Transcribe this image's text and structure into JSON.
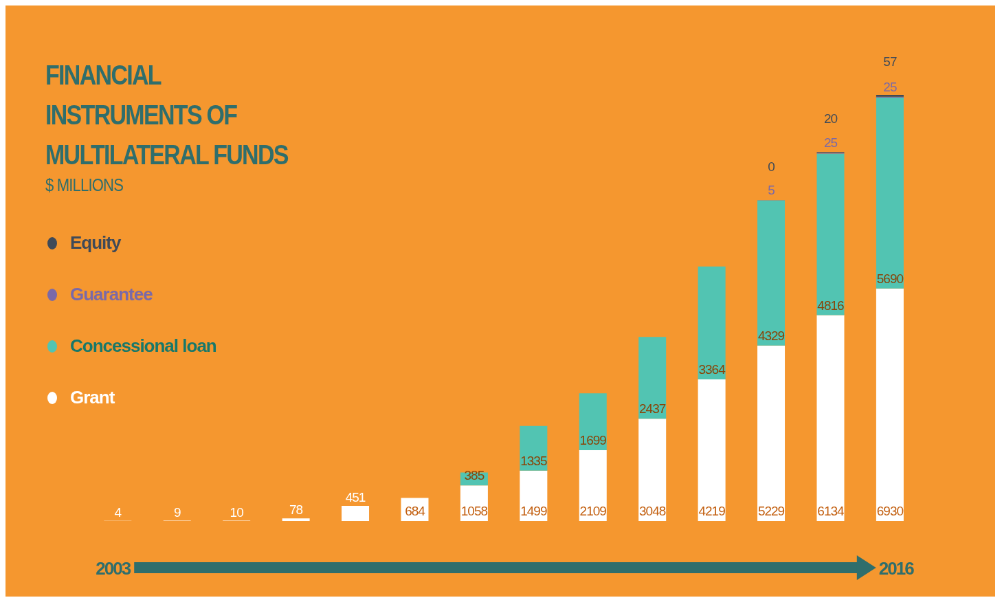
{
  "chart_data": {
    "type": "bar",
    "title": "FINANCIAL INSTRUMENTS OF MULTILATERAL FUNDS",
    "subtitle": "$ MILLIONS",
    "categories": [
      "2003",
      null,
      null,
      null,
      null,
      null,
      null,
      null,
      null,
      null,
      null,
      null,
      null,
      "2016"
    ],
    "stacked": true,
    "data_labels": true,
    "legend": "left",
    "grid": false,
    "series": [
      {
        "name": "Grant",
        "color": "#ffffff",
        "values": [
          4,
          9,
          10,
          78,
          451,
          684,
          1058,
          1499,
          2109,
          3048,
          4219,
          5229,
          6134,
          6930
        ]
      },
      {
        "name": "Concessional loan",
        "color": "#52c4b2",
        "values": [
          null,
          null,
          null,
          null,
          null,
          null,
          385,
          1335,
          1699,
          2437,
          3364,
          4329,
          4816,
          5690
        ]
      },
      {
        "name": "Guarantee",
        "color": "#7a69a8",
        "values": [
          null,
          null,
          null,
          null,
          null,
          null,
          null,
          null,
          null,
          null,
          null,
          5,
          25,
          25
        ]
      },
      {
        "name": "Equity",
        "color": "#3f4a58",
        "values": [
          null,
          null,
          null,
          null,
          null,
          null,
          null,
          null,
          null,
          null,
          null,
          0,
          20,
          57
        ]
      }
    ]
  }
}
